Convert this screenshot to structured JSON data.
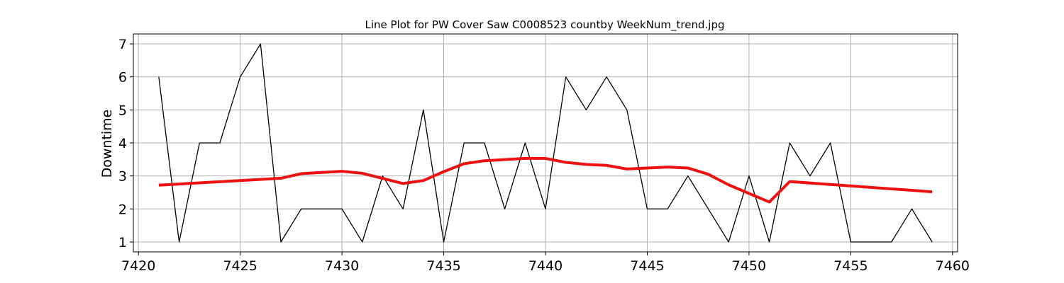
{
  "chart_data": {
    "type": "line",
    "title": "Line Plot for PW Cover Saw C0008523 countby WeekNum_trend.jpg",
    "xlabel": "",
    "ylabel": "Downtime",
    "xlim": [
      7419.75,
      7460.25
    ],
    "ylim": [
      0.7,
      7.3
    ],
    "xticks": [
      7420,
      7425,
      7430,
      7435,
      7440,
      7445,
      7450,
      7455,
      7460
    ],
    "yticks": [
      1,
      2,
      3,
      4,
      5,
      6,
      7
    ],
    "grid": true,
    "legend": "none",
    "series": [
      {
        "color": "#000000",
        "x": [
          7421,
          7422,
          7423,
          7424,
          7425,
          7426,
          7427,
          7428,
          7429,
          7430,
          7431,
          7432,
          7433,
          7434,
          7435,
          7436,
          7437,
          7438,
          7439,
          7440,
          7441,
          7442,
          7443,
          7444,
          7445,
          7446,
          7447,
          7448,
          7449,
          7450,
          7451,
          7452,
          7453,
          7454,
          7455,
          7456,
          7457,
          7458,
          7459
        ],
        "y": [
          6,
          1,
          4,
          4,
          6,
          7,
          1,
          2,
          2,
          2,
          1,
          3,
          2,
          5,
          1,
          4,
          4,
          2,
          4,
          2,
          6,
          5,
          6,
          5,
          2,
          2,
          3,
          2,
          1,
          3,
          1,
          4,
          3,
          4,
          1,
          1,
          1,
          2,
          1
        ]
      },
      {
        "color": "#ee1111",
        "x": [
          7421,
          7427,
          7428,
          7430,
          7431,
          7433,
          7434,
          7435,
          7436,
          7437,
          7439,
          7440,
          7441,
          7442,
          7443,
          7444,
          7446,
          7447,
          7448,
          7449,
          7451,
          7452,
          7459
        ],
        "y": [
          2.72,
          2.93,
          3.07,
          3.14,
          3.08,
          2.77,
          2.86,
          3.13,
          3.37,
          3.46,
          3.53,
          3.53,
          3.41,
          3.35,
          3.32,
          3.21,
          3.27,
          3.24,
          3.05,
          2.73,
          2.21,
          2.83,
          2.52
        ]
      }
    ]
  }
}
